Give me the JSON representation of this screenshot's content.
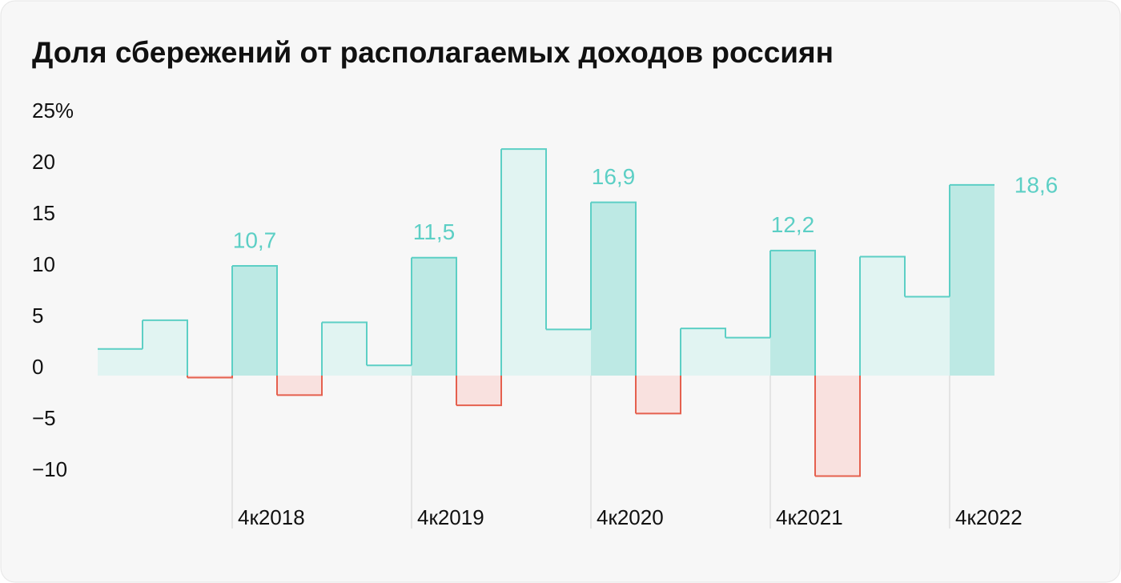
{
  "chart_data": {
    "type": "bar",
    "title": "Доля сбережений от располагаемых доходов россиян",
    "categories": [
      null,
      null,
      null,
      "4к2018",
      null,
      null,
      null,
      "4к2019",
      null,
      null,
      null,
      "4к2020",
      null,
      null,
      null,
      "4к2021",
      null,
      null,
      null,
      "4к2022"
    ],
    "values": [
      2.6,
      5.4,
      -0.2,
      10.7,
      -1.9,
      5.2,
      1.0,
      11.5,
      -2.9,
      22.1,
      4.5,
      16.9,
      -3.7,
      4.6,
      3.7,
      12.2,
      -9.8,
      11.6,
      7.7,
      18.6
    ],
    "value_labels": [
      null,
      null,
      null,
      "10,7",
      null,
      null,
      null,
      "11,5",
      null,
      null,
      null,
      "16,9",
      null,
      null,
      null,
      "12,2",
      null,
      null,
      null,
      "18,6"
    ],
    "color": "#5ccfc5",
    "negative_color": "#e5604e",
    "fill": "#e1f4f2",
    "highlight_fill": "#bde9e4",
    "negative_fill": "#f9e1df",
    "ylim": [
      -10,
      25
    ],
    "yticks": [
      {
        "value": -10,
        "label": "−10"
      },
      {
        "value": -5,
        "label": "−5"
      },
      0,
      5,
      10,
      15,
      20,
      {
        "value": 25,
        "label": "25%"
      }
    ]
  }
}
